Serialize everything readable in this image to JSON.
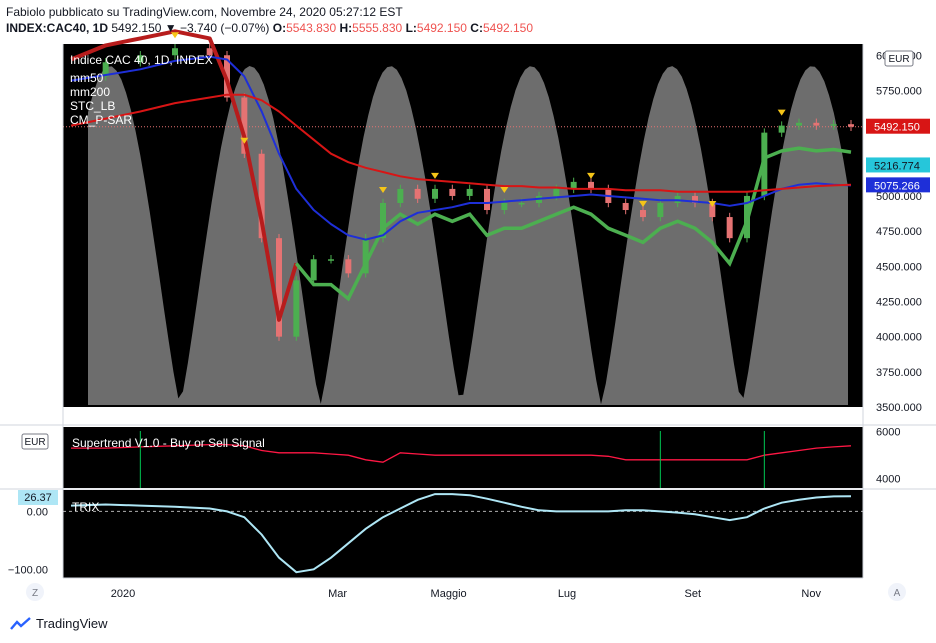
{
  "header": {
    "line1": "Fabiolo pubblicato su TradingView.com, Novembre 24, 2020 05:27:12 EST",
    "symbol": "INDEX:CAC40, 1D",
    "last": "5492.150",
    "change": "▼ −3.740 (−0.07%)",
    "open_label": "O:",
    "open": "5543.830",
    "high_label": "H:",
    "high": "5555.830",
    "low_label": "L:",
    "low": "5492.150",
    "close_label": "C:",
    "close": "5492.150"
  },
  "footer": {
    "brand": "TradingView"
  },
  "colors": {
    "bg": "#000000",
    "stc": "#808080",
    "ma50": "#1e2fd8",
    "ma200": "#d81515",
    "psar_up": "#4caf50",
    "psar_down": "#b71c1c",
    "trix": "#aee6f5",
    "up_candle": "#4caf50",
    "down_candle": "#e57373",
    "marker": "#f5c518"
  },
  "chart_data": [
    {
      "type": "line",
      "title": "Indice CAC 40, 1D, INDEX",
      "legend": [
        "mm50",
        "mm200",
        "STC_LB",
        "CM_P-SAR"
      ],
      "currency": "EUR",
      "x_ticks": [
        "2020",
        "Mar",
        "Maggio",
        "Lug",
        "Set",
        "Nov"
      ],
      "y_ticks": [
        3500,
        3750,
        4000,
        4250,
        4500,
        4750,
        5000,
        5250,
        5500,
        5750,
        6000
      ],
      "ylim": [
        3500,
        6080
      ],
      "price_labels": [
        "5216.774",
        "5075.266",
        "5492.150"
      ],
      "y_label_values": [
        5216.774,
        5075.266,
        5492.15
      ],
      "y_label_colors": [
        "#26c6da",
        "#1e2fd8",
        "#d81515"
      ],
      "last_price_line": 5492.15,
      "x": [
        0,
        10,
        20,
        30,
        40,
        45,
        50,
        55,
        60,
        65,
        70,
        75,
        80,
        85,
        90,
        95,
        100,
        105,
        110,
        115,
        120,
        125,
        130,
        135,
        140,
        145,
        150,
        155,
        160,
        165,
        170,
        175,
        180,
        185,
        190,
        195,
        200,
        205,
        210,
        215,
        220,
        225
      ],
      "series": [
        {
          "name": "Close",
          "values": [
            5850,
            5950,
            6000,
            6050,
            6000,
            5700,
            5300,
            4700,
            4000,
            4400,
            4550,
            4550,
            4450,
            4700,
            4950,
            5050,
            4980,
            5050,
            5000,
            5050,
            4900,
            4950,
            4950,
            5000,
            5050,
            5100,
            5050,
            4950,
            4900,
            4850,
            4950,
            5000,
            4950,
            4850,
            4700,
            5000,
            5450,
            5500,
            5520,
            5500,
            5510,
            5492
          ]
        },
        {
          "name": "mm50",
          "values": [
            5820,
            5860,
            5900,
            5960,
            5990,
            5970,
            5850,
            5600,
            5300,
            5050,
            4900,
            4800,
            4720,
            4690,
            4720,
            4820,
            4880,
            4900,
            4920,
            4950,
            4950,
            4960,
            4970,
            4980,
            4990,
            5000,
            5010,
            5000,
            4990,
            4980,
            4970,
            4970,
            4960,
            4950,
            4930,
            4950,
            5000,
            5050,
            5080,
            5090,
            5080,
            5075
          ]
        },
        {
          "name": "mm200",
          "values": [
            5500,
            5550,
            5600,
            5660,
            5700,
            5720,
            5720,
            5680,
            5600,
            5500,
            5400,
            5300,
            5240,
            5200,
            5170,
            5140,
            5120,
            5110,
            5100,
            5090,
            5080,
            5070,
            5070,
            5060,
            5060,
            5050,
            5050,
            5050,
            5040,
            5040,
            5040,
            5030,
            5030,
            5030,
            5030,
            5030,
            5040,
            5050,
            5060,
            5070,
            5075,
            5080
          ]
        }
      ]
    },
    {
      "type": "line",
      "title": "Supertrend V1.0 - Buy or Sell Signal",
      "currency": "EUR",
      "y_ticks": [
        4000,
        6000
      ],
      "ylim": [
        3600,
        6200
      ],
      "series": [
        {
          "name": "Supertrend",
          "values": [
            5300,
            5300,
            5350,
            5400,
            5450,
            5450,
            5400,
            5200,
            5100,
            5100,
            5100,
            5050,
            5000,
            4800,
            4700,
            5100,
            5050,
            5000,
            5000,
            5000,
            5000,
            5000,
            5000,
            5000,
            5000,
            5000,
            5000,
            4950,
            4800,
            4800,
            4800,
            4800,
            4800,
            4800,
            4800,
            4800,
            5000,
            5100,
            5200,
            5300,
            5350,
            5400
          ]
        }
      ]
    },
    {
      "type": "line",
      "title": "TRIX",
      "y_ticks": [
        0.0,
        -100.0
      ],
      "y_tick_labels": [
        "0.00",
        "−100.00"
      ],
      "ylim": [
        -115,
        37
      ],
      "last_label": "26.37",
      "series": [
        {
          "name": "TRIX",
          "values": [
            10,
            12,
            10,
            8,
            5,
            0,
            -10,
            -40,
            -80,
            -105,
            -100,
            -80,
            -55,
            -30,
            -10,
            5,
            20,
            30,
            30,
            28,
            22,
            15,
            8,
            2,
            0,
            0,
            0,
            0,
            2,
            2,
            0,
            -2,
            -5,
            -10,
            -15,
            -10,
            5,
            15,
            20,
            24,
            26,
            26.37
          ]
        }
      ]
    }
  ]
}
